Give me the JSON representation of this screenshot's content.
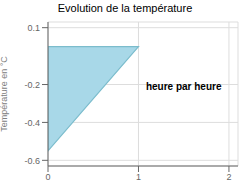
{
  "chart_data": {
    "type": "area",
    "title": "Evolution de la température",
    "ylabel": "Température en °C",
    "annotations": [
      {
        "text": "heure par heure",
        "x": 1.5,
        "y": -0.18
      }
    ],
    "xlim": [
      0,
      2.1
    ],
    "ylim": [
      -0.63,
      0.13
    ],
    "xticks": [
      0,
      1,
      2
    ],
    "yticks": [
      0.1,
      -0.2,
      -0.4,
      -0.6
    ],
    "grid": true,
    "series": [
      {
        "type": "area",
        "color": "#a8d8e8",
        "x": [
          0,
          0,
          1
        ],
        "values": [
          0,
          -0.55,
          0
        ]
      },
      {
        "type": "line",
        "color": "#7bbccc",
        "x": [
          0,
          0,
          1,
          0
        ],
        "values": [
          0,
          -0.55,
          0,
          0
        ]
      }
    ]
  }
}
